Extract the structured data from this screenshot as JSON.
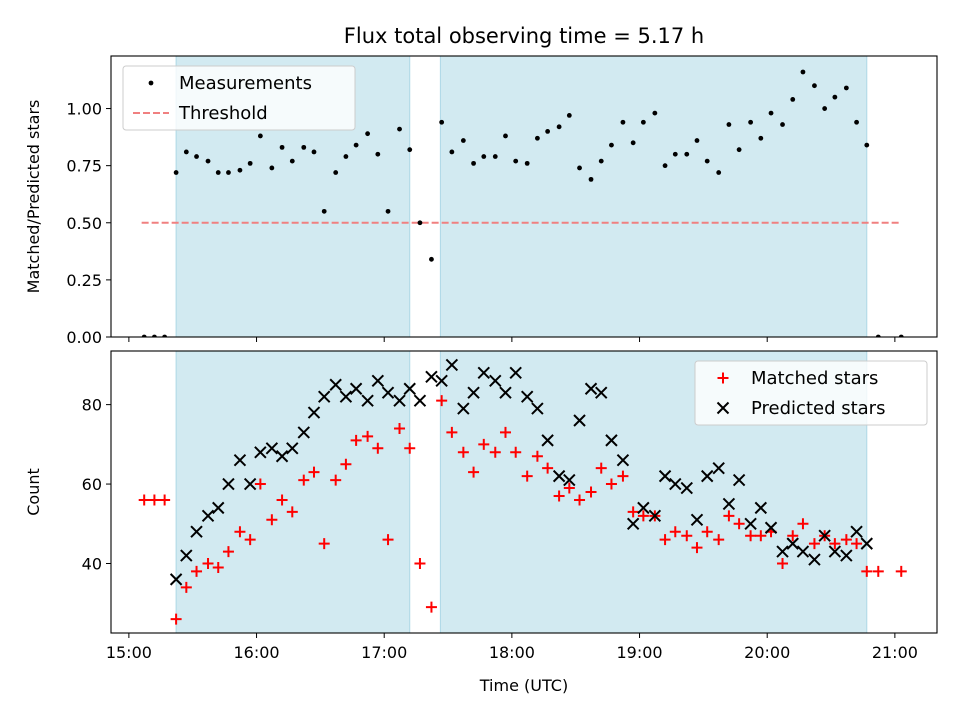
{
  "title": "Flux total observing time = 5.17 h",
  "colors": {
    "shade": "#add8e6",
    "measurement": "#000000",
    "threshold": "#f08080",
    "matched": "#ff0000",
    "predicted": "#000000"
  },
  "chart_data": [
    {
      "type": "scatter",
      "panel": "top",
      "ylabel": "Matched/Predicted stars",
      "xlim": [
        14.86,
        21.33
      ],
      "ylim": [
        0.0,
        1.23
      ],
      "yticks": [
        0.0,
        0.25,
        0.5,
        0.75,
        1.0
      ],
      "ytick_labels": [
        "0.00",
        "0.25",
        "0.50",
        "0.75",
        "1.00"
      ],
      "shaded_intervals": [
        [
          15.37,
          17.2
        ],
        [
          17.44,
          20.78
        ]
      ],
      "legend": {
        "position": "top-left",
        "entries": [
          {
            "label": "Measurements",
            "marker": "dot"
          },
          {
            "label": "Threshold",
            "marker": "dashed-line"
          }
        ]
      },
      "threshold": {
        "name": "Threshold",
        "y": 0.5,
        "x": [
          15.1,
          21.05
        ]
      },
      "series": [
        {
          "name": "Measurements",
          "marker": "dot",
          "x": [
            15.12,
            15.2,
            15.28,
            15.37,
            15.45,
            15.53,
            15.62,
            15.7,
            15.78,
            15.87,
            15.95,
            16.03,
            16.12,
            16.2,
            16.28,
            16.37,
            16.45,
            16.53,
            16.62,
            16.7,
            16.78,
            16.87,
            16.95,
            17.03,
            17.12,
            17.2,
            17.28,
            17.37,
            17.45,
            17.53,
            17.62,
            17.7,
            17.78,
            17.87,
            17.95,
            18.03,
            18.12,
            18.2,
            18.28,
            18.37,
            18.45,
            18.53,
            18.62,
            18.7,
            18.78,
            18.87,
            18.95,
            19.03,
            19.12,
            19.2,
            19.28,
            19.37,
            19.45,
            19.53,
            19.62,
            19.7,
            19.78,
            19.87,
            19.95,
            20.03,
            20.12,
            20.2,
            20.28,
            20.37,
            20.45,
            20.53,
            20.62,
            20.7,
            20.78,
            20.87,
            21.05
          ],
          "y": [
            0.0,
            0.0,
            0.0,
            0.72,
            0.81,
            0.79,
            0.77,
            0.72,
            0.72,
            0.73,
            0.76,
            0.88,
            0.74,
            0.83,
            0.77,
            0.83,
            0.81,
            0.55,
            0.72,
            0.79,
            0.84,
            0.89,
            0.8,
            0.55,
            0.91,
            0.82,
            0.5,
            0.34,
            0.94,
            0.81,
            0.86,
            0.76,
            0.79,
            0.79,
            0.88,
            0.77,
            0.76,
            0.87,
            0.9,
            0.92,
            0.97,
            0.74,
            0.69,
            0.77,
            0.84,
            0.94,
            0.85,
            0.94,
            0.98,
            0.75,
            0.8,
            0.8,
            0.86,
            0.77,
            0.72,
            0.93,
            0.82,
            0.94,
            0.87,
            0.98,
            0.93,
            1.04,
            1.16,
            1.1,
            1.0,
            1.05,
            1.09,
            0.94,
            0.84,
            0.0,
            0.0
          ]
        }
      ]
    },
    {
      "type": "scatter",
      "panel": "bottom",
      "xlabel": "Time (UTC)",
      "ylabel": "Count",
      "xlim": [
        14.86,
        21.33
      ],
      "ylim": [
        22.5,
        93.5
      ],
      "xticks": [
        15,
        16,
        17,
        18,
        19,
        20,
        21
      ],
      "xtick_labels": [
        "15:00",
        "16:00",
        "17:00",
        "18:00",
        "19:00",
        "20:00",
        "21:00"
      ],
      "yticks": [
        40,
        60,
        80
      ],
      "ytick_labels": [
        "40",
        "60",
        "80"
      ],
      "shaded_intervals": [
        [
          15.37,
          17.2
        ],
        [
          17.44,
          20.78
        ]
      ],
      "legend": {
        "position": "top-right",
        "entries": [
          {
            "label": "Matched stars",
            "marker": "plus"
          },
          {
            "label": "Predicted stars",
            "marker": "x"
          }
        ]
      },
      "series": [
        {
          "name": "Matched stars",
          "marker": "plus",
          "x": [
            15.12,
            15.2,
            15.28,
            15.37,
            15.45,
            15.53,
            15.62,
            15.7,
            15.78,
            15.87,
            15.95,
            16.03,
            16.12,
            16.2,
            16.28,
            16.37,
            16.45,
            16.53,
            16.62,
            16.7,
            16.78,
            16.87,
            16.95,
            17.03,
            17.12,
            17.2,
            17.28,
            17.37,
            17.45,
            17.53,
            17.62,
            17.7,
            17.78,
            17.87,
            17.95,
            18.03,
            18.12,
            18.2,
            18.28,
            18.37,
            18.45,
            18.53,
            18.62,
            18.7,
            18.78,
            18.87,
            18.95,
            19.03,
            19.12,
            19.2,
            19.28,
            19.37,
            19.45,
            19.53,
            19.62,
            19.7,
            19.78,
            19.87,
            19.95,
            20.03,
            20.12,
            20.2,
            20.28,
            20.37,
            20.45,
            20.53,
            20.62,
            20.7,
            20.78,
            20.87,
            21.05
          ],
          "y": [
            56,
            56,
            56,
            26,
            34,
            38,
            40,
            39,
            43,
            48,
            46,
            60,
            51,
            56,
            53,
            61,
            63,
            45,
            61,
            65,
            71,
            72,
            69,
            46,
            74,
            69,
            40,
            29,
            81,
            73,
            68,
            63,
            70,
            68,
            73,
            68,
            62,
            67,
            64,
            57,
            59,
            56,
            58,
            64,
            60,
            62,
            53,
            52,
            52,
            46,
            48,
            47,
            44,
            48,
            46,
            52,
            50,
            47,
            47,
            48,
            40,
            47,
            50,
            45,
            47,
            45,
            46,
            45,
            38,
            38,
            38
          ]
        },
        {
          "name": "Predicted stars",
          "marker": "x",
          "x": [
            15.37,
            15.45,
            15.53,
            15.62,
            15.7,
            15.78,
            15.87,
            15.95,
            16.03,
            16.12,
            16.2,
            16.28,
            16.37,
            16.45,
            16.53,
            16.62,
            16.7,
            16.78,
            16.87,
            16.95,
            17.03,
            17.12,
            17.2,
            17.28,
            17.37,
            17.45,
            17.53,
            17.62,
            17.7,
            17.78,
            17.87,
            17.95,
            18.03,
            18.12,
            18.2,
            18.28,
            18.37,
            18.45,
            18.53,
            18.62,
            18.7,
            18.78,
            18.87,
            18.95,
            19.03,
            19.12,
            19.2,
            19.28,
            19.37,
            19.45,
            19.53,
            19.62,
            19.7,
            19.78,
            19.87,
            19.95,
            20.03,
            20.12,
            20.2,
            20.28,
            20.37,
            20.45,
            20.53,
            20.62,
            20.7,
            20.78
          ],
          "y": [
            36,
            42,
            48,
            52,
            54,
            60,
            66,
            60,
            68,
            69,
            67,
            69,
            73,
            78,
            82,
            85,
            82,
            84,
            81,
            86,
            83,
            81,
            84,
            81,
            87,
            86,
            90,
            79,
            83,
            88,
            86,
            83,
            88,
            82,
            79,
            71,
            62,
            61,
            76,
            84,
            83,
            71,
            66,
            50,
            54,
            52,
            62,
            60,
            59,
            51,
            62,
            64,
            55,
            61,
            50,
            54,
            49,
            43,
            45,
            43,
            41,
            47,
            43,
            42,
            48,
            45
          ]
        }
      ]
    }
  ]
}
